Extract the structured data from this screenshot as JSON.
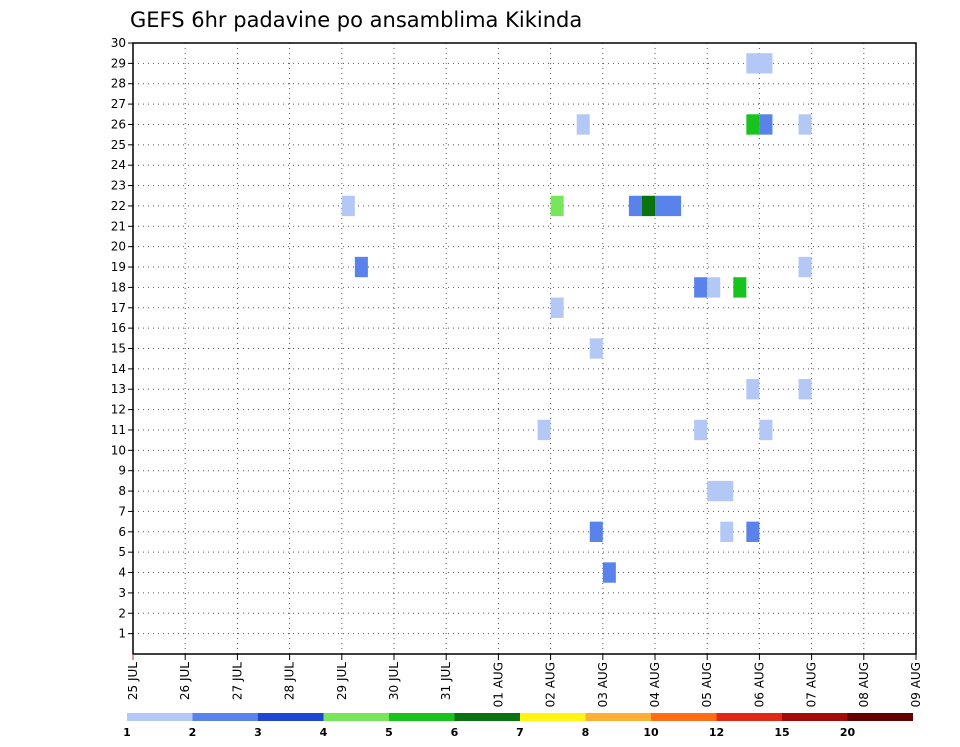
{
  "chart_data": {
    "type": "heatmap",
    "title": "GEFS 6hr padavine po ansamblima Kikinda",
    "y_ticks": [
      "1",
      "2",
      "3",
      "4",
      "5",
      "6",
      "7",
      "8",
      "9",
      "10",
      "11",
      "12",
      "13",
      "14",
      "15",
      "16",
      "17",
      "18",
      "19",
      "20",
      "21",
      "22",
      "23",
      "24",
      "25",
      "26",
      "27",
      "28",
      "29",
      "30"
    ],
    "ylim": [
      0,
      30
    ],
    "x_ticks": [
      "25 JUL",
      "26 JUL",
      "27 JUL",
      "28 JUL",
      "29 JUL",
      "30 JUL",
      "31 JUL",
      "01 AUG",
      "02 AUG",
      "03 AUG",
      "04 AUG",
      "05 AUG",
      "06 AUG",
      "07 AUG",
      "08 AUG",
      "09 AUG"
    ],
    "x_unit": "day",
    "xlim": [
      0,
      15
    ],
    "grid": true,
    "colorbar": {
      "labels": [
        "1",
        "2",
        "3",
        "4",
        "5",
        "6",
        "7",
        "8",
        "10",
        "12",
        "15",
        "20"
      ],
      "colors": [
        "#b4c8f5",
        "#5a82eb",
        "#1e46d2",
        "#78e65a",
        "#19c31e",
        "#0a730f",
        "#fff514",
        "#ffaf32",
        "#ff6e14",
        "#e12814",
        "#a50a0a",
        "#640000"
      ]
    },
    "cells": [
      {
        "member": 29,
        "day_start": 11.75,
        "day_end": 12.25,
        "color_index": 0
      },
      {
        "member": 26,
        "day_start": 8.5,
        "day_end": 8.75,
        "color_index": 0
      },
      {
        "member": 26,
        "day_start": 11.75,
        "day_end": 12.0,
        "color_index": 4
      },
      {
        "member": 26,
        "day_start": 12.0,
        "day_end": 12.25,
        "color_index": 1
      },
      {
        "member": 26,
        "day_start": 12.75,
        "day_end": 13.0,
        "color_index": 0
      },
      {
        "member": 22,
        "day_start": 4.0,
        "day_end": 4.25,
        "color_index": 0
      },
      {
        "member": 22,
        "day_start": 8.0,
        "day_end": 8.25,
        "color_index": 3
      },
      {
        "member": 22,
        "day_start": 9.5,
        "day_end": 9.75,
        "color_index": 1
      },
      {
        "member": 22,
        "day_start": 9.75,
        "day_end": 10.0,
        "color_index": 5
      },
      {
        "member": 22,
        "day_start": 10.0,
        "day_end": 10.5,
        "color_index": 1
      },
      {
        "member": 19,
        "day_start": 4.25,
        "day_end": 4.5,
        "color_index": 1
      },
      {
        "member": 19,
        "day_start": 12.75,
        "day_end": 13.0,
        "color_index": 0
      },
      {
        "member": 18,
        "day_start": 10.75,
        "day_end": 11.0,
        "color_index": 1
      },
      {
        "member": 18,
        "day_start": 11.0,
        "day_end": 11.25,
        "color_index": 0
      },
      {
        "member": 18,
        "day_start": 11.5,
        "day_end": 11.75,
        "color_index": 4
      },
      {
        "member": 17,
        "day_start": 8.0,
        "day_end": 8.25,
        "color_index": 0
      },
      {
        "member": 15,
        "day_start": 8.75,
        "day_end": 9.0,
        "color_index": 0
      },
      {
        "member": 13,
        "day_start": 11.75,
        "day_end": 12.0,
        "color_index": 0
      },
      {
        "member": 13,
        "day_start": 12.75,
        "day_end": 13.0,
        "color_index": 0
      },
      {
        "member": 11,
        "day_start": 7.75,
        "day_end": 8.0,
        "color_index": 0
      },
      {
        "member": 11,
        "day_start": 10.75,
        "day_end": 11.0,
        "color_index": 0
      },
      {
        "member": 11,
        "day_start": 12.0,
        "day_end": 12.25,
        "color_index": 0
      },
      {
        "member": 8,
        "day_start": 11.0,
        "day_end": 11.5,
        "color_index": 0
      },
      {
        "member": 6,
        "day_start": 8.75,
        "day_end": 9.0,
        "color_index": 1
      },
      {
        "member": 6,
        "day_start": 11.25,
        "day_end": 11.5,
        "color_index": 0
      },
      {
        "member": 6,
        "day_start": 11.75,
        "day_end": 12.0,
        "color_index": 1
      },
      {
        "member": 4,
        "day_start": 9.0,
        "day_end": 9.25,
        "color_index": 1
      }
    ]
  }
}
